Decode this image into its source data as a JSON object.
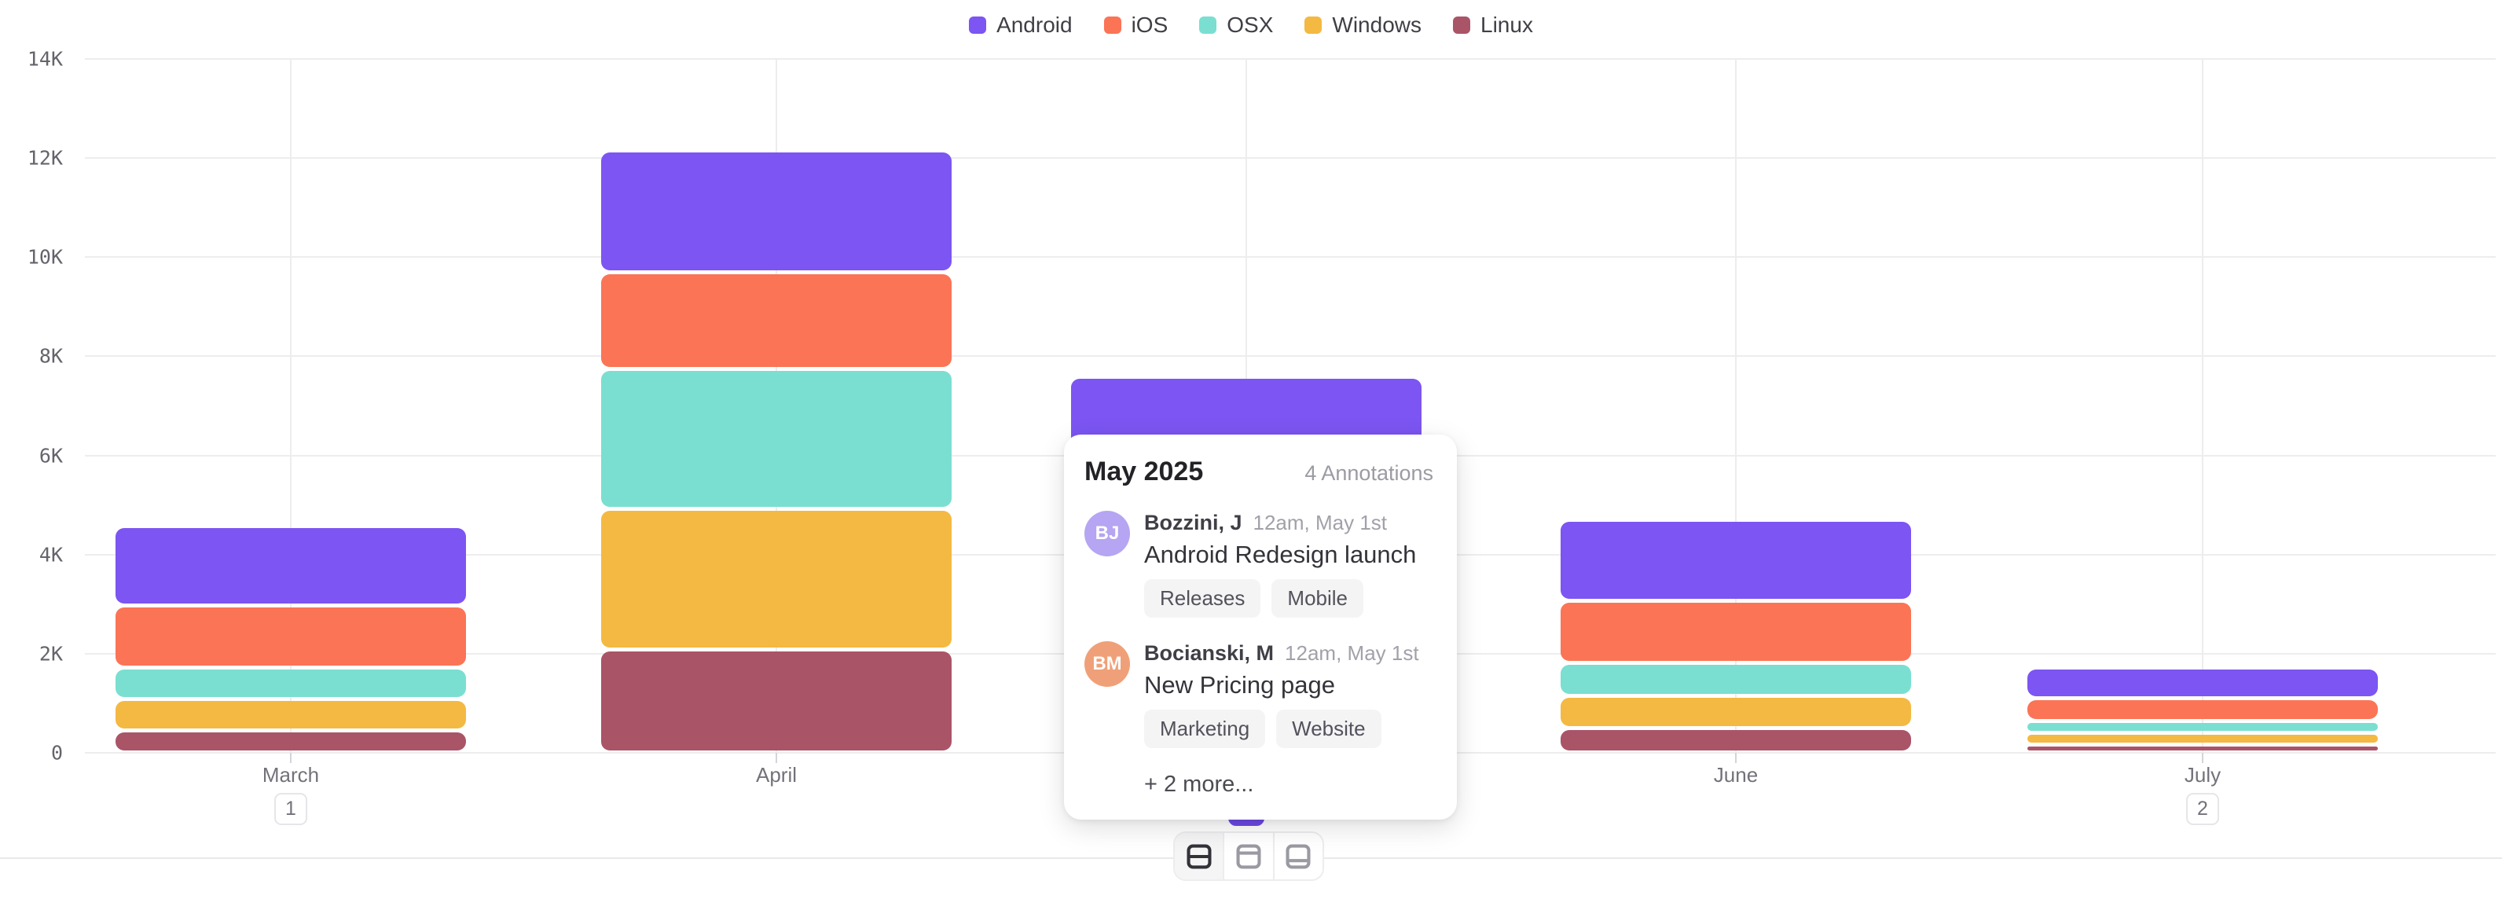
{
  "theme": {
    "accent_purple": "#6d49e6",
    "grid_color": "#ededee",
    "page_background": "#ffffff"
  },
  "chart_data": {
    "type": "bar",
    "stacked": true,
    "title": "",
    "xlabel": "",
    "ylabel": "",
    "categories": [
      "March",
      "April",
      "May",
      "June",
      "July"
    ],
    "series": [
      {
        "name": "Android",
        "color": "#7c55f2",
        "values": [
          1600,
          2460,
          null,
          1630,
          620
        ]
      },
      {
        "name": "iOS",
        "color": "#fb7456",
        "values": [
          1250,
          1950,
          null,
          1250,
          460
        ]
      },
      {
        "name": "OSX",
        "color": "#7adfd1",
        "values": [
          630,
          2820,
          null,
          670,
          230
        ]
      },
      {
        "name": "Windows",
        "color": "#f4b942",
        "values": [
          640,
          2840,
          null,
          650,
          240
        ]
      },
      {
        "name": "Linux",
        "color": "#aa5468",
        "values": [
          440,
          2080,
          null,
          490,
          160
        ]
      }
    ],
    "may_visible_total": 7580,
    "may_note": "May stack breakdown is hidden behind the annotations popover; only the purple (Android) top of the bar, total ≈7.6K, is visible",
    "ylim": [
      0,
      14000
    ],
    "y_ticks": [
      {
        "label": "0",
        "value": 0
      },
      {
        "label": "2K",
        "value": 2000
      },
      {
        "label": "4K",
        "value": 4000
      },
      {
        "label": "6K",
        "value": 6000
      },
      {
        "label": "8K",
        "value": 8000
      },
      {
        "label": "10K",
        "value": 10000
      },
      {
        "label": "12K",
        "value": 12000
      },
      {
        "label": "14K",
        "value": 14000
      }
    ],
    "grid": "light gray horizontal and vertical gridlines",
    "legend_position": "top-center",
    "annotation_badges": [
      {
        "month": "March",
        "label": "1",
        "active": false
      },
      {
        "month": "May",
        "label": "4",
        "active": true
      },
      {
        "month": "July",
        "label": "2",
        "active": false
      }
    ]
  },
  "popover": {
    "title": "May 2025",
    "count_label": "4 Annotations",
    "entries": [
      {
        "initials": "BJ",
        "avatar_color": "#b5a5f2",
        "name": "Bozzini, J",
        "time": "12am, May 1st",
        "text": "Android Redesign launch",
        "tags": [
          "Releases",
          "Mobile"
        ]
      },
      {
        "initials": "BM",
        "avatar_color": "#f0a078",
        "name": "Bocianski, M",
        "time": "12am, May 1st",
        "text": "New Pricing page",
        "tags": [
          "Marketing",
          "Website"
        ]
      }
    ],
    "more_label": "+ 2 more..."
  },
  "toolbar": {
    "buttons": [
      {
        "label": "split rows layout",
        "icon": "layout-split-horizontal-icon",
        "active": true
      },
      {
        "label": "top bar layout",
        "icon": "layout-top-bar-icon",
        "active": false
      },
      {
        "label": "bottom bar layout",
        "icon": "layout-bottom-bar-icon",
        "active": false
      }
    ]
  }
}
